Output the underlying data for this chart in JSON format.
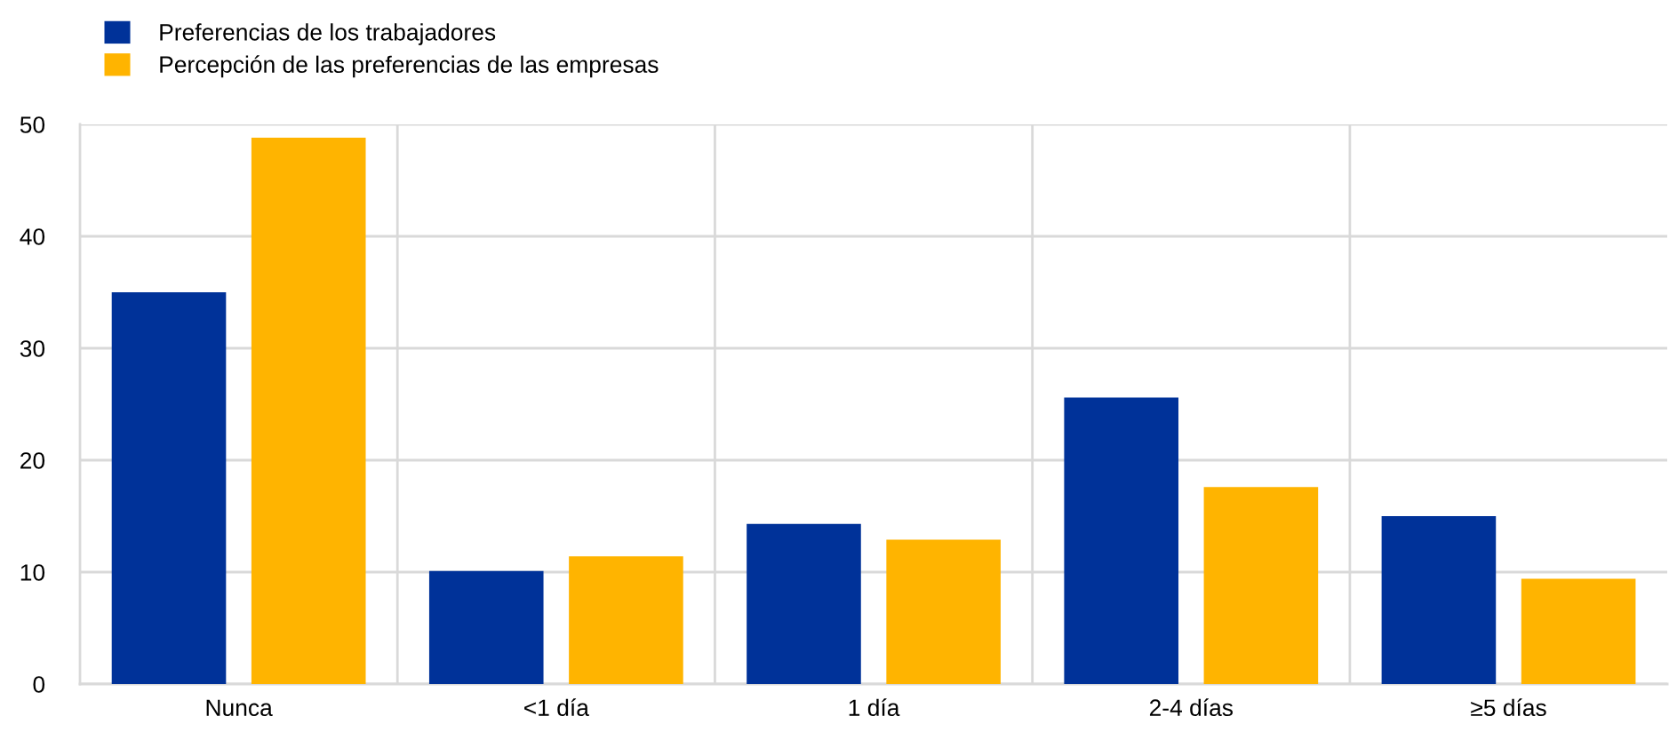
{
  "chart_data": {
    "type": "bar",
    "categories": [
      "Nunca",
      "<1 día",
      "1 día",
      "2-4 días",
      "≥5 días"
    ],
    "series": [
      {
        "name": "Preferencias de los trabajadores",
        "color": "#003299",
        "values": [
          35.0,
          10.1,
          14.3,
          25.6,
          15.0
        ]
      },
      {
        "name": "Percepción de las preferencias de las empresas",
        "color": "#ffb400",
        "values": [
          48.8,
          11.4,
          12.9,
          17.6,
          9.4
        ]
      }
    ],
    "ylim": [
      0,
      50
    ],
    "yticks": [
      0,
      10,
      20,
      30,
      40,
      50
    ],
    "grid": true,
    "legend": "top left"
  }
}
